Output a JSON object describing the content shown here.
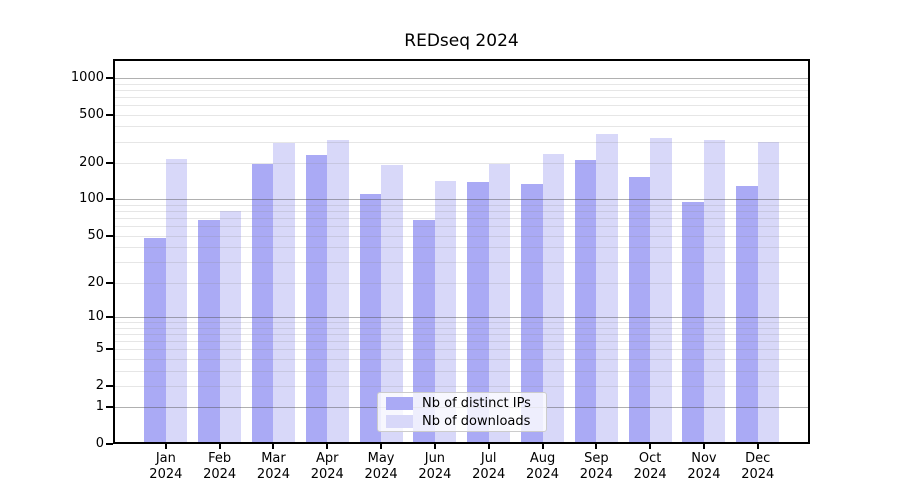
{
  "chart_data": {
    "type": "bar",
    "title": "REDseq 2024",
    "categories": [
      "Jan 2024",
      "Feb 2024",
      "Mar 2024",
      "Apr 2024",
      "May 2024",
      "Jun 2024",
      "Jul 2024",
      "Aug 2024",
      "Sep 2024",
      "Oct 2024",
      "Nov 2024",
      "Dec 2024"
    ],
    "series": [
      {
        "name": "Nb of distinct IPs",
        "color": "#aaaaf5",
        "values": [
          48,
          68,
          198,
          233,
          110,
          67,
          139,
          133,
          210,
          152,
          95,
          129
        ]
      },
      {
        "name": "Nb of downloads",
        "color": "#d8d8f9",
        "values": [
          215,
          80,
          290,
          312,
          194,
          142,
          198,
          235,
          349,
          324,
          310,
          300
        ]
      }
    ],
    "yscale": "log1p",
    "yticks": [
      0,
      1,
      2,
      5,
      10,
      20,
      50,
      100,
      200,
      500,
      1000
    ],
    "major_grid_values": [
      1,
      10,
      100,
      1000
    ],
    "ylim": [
      0,
      1430
    ],
    "xlabel": "",
    "ylabel": "",
    "grid": true,
    "legend_position": "lower center"
  }
}
